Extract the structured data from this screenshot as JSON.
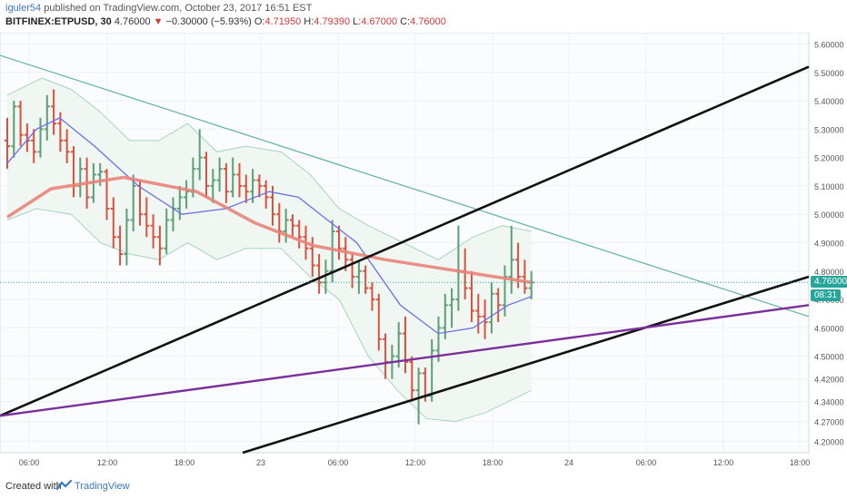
{
  "header": {
    "author": "iguler54",
    "published_text": "published on TradingView.com, October 23, 2017 16:51 EST",
    "symbol": "BITFINEX:ETPUSD, 30",
    "last": "4.76000",
    "change_arrow": "▼",
    "change": "−0.30000 (−5.93%)",
    "o_label": "O:",
    "o_value": "4.71950",
    "h_label": "H:",
    "h_value": "4.79390",
    "l_label": "L:",
    "l_value": "4.67000",
    "c_label": "C:",
    "c_value": "4.76000"
  },
  "price_badge": {
    "value": "4.76000",
    "color": "#26a69a"
  },
  "timer_badge": {
    "value": "08:31",
    "color": "#26a69a"
  },
  "footer": {
    "created_with": "Created with",
    "brand": "TradingView"
  },
  "colors": {
    "up": "#5e9e77",
    "down": "#d9513f",
    "ema": "#e8837a",
    "basis": "#6e6ee8",
    "bands": "#a7d3c0",
    "band_fill": "#eef6f1",
    "trend_green": "#5bb39a",
    "channel": "#111111",
    "purple": "#7b2f9a"
  },
  "chart_data": {
    "type": "ohlc",
    "x_ticks": [
      "06:00",
      "12:00",
      "18:00",
      "23",
      "06:00",
      "12:00",
      "18:00",
      "24",
      "06:00",
      "12:00",
      "18:00"
    ],
    "y_ticks": [
      "5.60000",
      "5.50000",
      "5.40000",
      "5.30000",
      "5.20000",
      "5.10000",
      "5.00000",
      "4.90000",
      "4.80000",
      "4.70000",
      "4.60000",
      "4.50000",
      "4.42000",
      "4.34000",
      "4.27000",
      "4.20000"
    ],
    "y_range": [
      4.16,
      5.64
    ],
    "last_price": 4.76,
    "candles": [
      [
        5.26,
        5.34,
        5.16,
        5.24
      ],
      [
        5.24,
        5.4,
        5.2,
        5.38
      ],
      [
        5.38,
        5.4,
        5.24,
        5.28
      ],
      [
        5.28,
        5.32,
        5.22,
        5.26
      ],
      [
        5.26,
        5.3,
        5.18,
        5.22
      ],
      [
        5.22,
        5.34,
        5.2,
        5.3
      ],
      [
        5.3,
        5.42,
        5.26,
        5.38
      ],
      [
        5.38,
        5.44,
        5.28,
        5.32
      ],
      [
        5.32,
        5.36,
        5.22,
        5.26
      ],
      [
        5.26,
        5.3,
        5.18,
        5.22
      ],
      [
        5.22,
        5.24,
        5.06,
        5.1
      ],
      [
        5.1,
        5.2,
        5.06,
        5.16
      ],
      [
        5.16,
        5.2,
        5.02,
        5.06
      ],
      [
        5.06,
        5.18,
        5.04,
        5.14
      ],
      [
        5.14,
        5.18,
        5.1,
        5.15
      ],
      [
        5.15,
        5.16,
        4.98,
        5.02
      ],
      [
        5.02,
        5.06,
        4.88,
        4.92
      ],
      [
        4.92,
        4.96,
        4.82,
        4.86
      ],
      [
        4.86,
        5.02,
        4.82,
        4.98
      ],
      [
        4.98,
        5.14,
        4.94,
        5.1
      ],
      [
        5.1,
        5.12,
        4.96,
        5.0
      ],
      [
        5.0,
        5.06,
        4.92,
        4.96
      ],
      [
        4.96,
        5.0,
        4.88,
        4.92
      ],
      [
        4.92,
        4.96,
        4.82,
        4.88
      ],
      [
        4.88,
        5.02,
        4.86,
        4.98
      ],
      [
        4.98,
        5.06,
        4.94,
        5.02
      ],
      [
        5.02,
        5.1,
        4.98,
        5.06
      ],
      [
        5.06,
        5.12,
        5.02,
        5.08
      ],
      [
        5.08,
        5.2,
        5.06,
        5.16
      ],
      [
        5.16,
        5.3,
        5.12,
        5.2
      ],
      [
        5.2,
        5.22,
        5.06,
        5.1
      ],
      [
        5.1,
        5.16,
        5.04,
        5.12
      ],
      [
        5.12,
        5.2,
        5.08,
        5.16
      ],
      [
        5.16,
        5.18,
        5.04,
        5.08
      ],
      [
        5.08,
        5.2,
        5.06,
        5.14
      ],
      [
        5.14,
        5.18,
        5.06,
        5.1
      ],
      [
        5.1,
        5.14,
        5.04,
        5.08
      ],
      [
        5.08,
        5.16,
        5.04,
        5.12
      ],
      [
        5.12,
        5.14,
        5.06,
        5.1
      ],
      [
        5.1,
        5.12,
        5.02,
        5.06
      ],
      [
        5.06,
        5.1,
        4.96,
        5.0
      ],
      [
        5.0,
        5.04,
        4.9,
        4.94
      ],
      [
        4.94,
        5.02,
        4.9,
        4.98
      ],
      [
        4.98,
        5.0,
        4.92,
        4.96
      ],
      [
        4.96,
        4.98,
        4.88,
        4.92
      ],
      [
        4.92,
        4.96,
        4.84,
        4.88
      ],
      [
        4.88,
        4.92,
        4.78,
        4.82
      ],
      [
        4.82,
        4.86,
        4.72,
        4.76
      ],
      [
        4.76,
        4.84,
        4.72,
        4.8
      ],
      [
        4.8,
        4.98,
        4.76,
        4.94
      ],
      [
        4.94,
        4.96,
        4.84,
        4.88
      ],
      [
        4.88,
        4.92,
        4.8,
        4.84
      ],
      [
        4.84,
        4.86,
        4.74,
        4.78
      ],
      [
        4.78,
        4.84,
        4.72,
        4.8
      ],
      [
        4.8,
        4.82,
        4.72,
        4.74
      ],
      [
        4.74,
        4.76,
        4.66,
        4.7
      ],
      [
        4.7,
        4.72,
        4.52,
        4.56
      ],
      [
        4.56,
        4.58,
        4.42,
        4.48
      ],
      [
        4.48,
        4.54,
        4.42,
        4.5
      ],
      [
        4.5,
        4.62,
        4.46,
        4.58
      ],
      [
        4.58,
        4.64,
        4.44,
        4.48
      ],
      [
        4.48,
        4.5,
        4.34,
        4.38
      ],
      [
        4.38,
        4.46,
        4.26,
        4.44
      ],
      [
        4.44,
        4.46,
        4.34,
        4.36
      ],
      [
        4.36,
        4.56,
        4.34,
        4.52
      ],
      [
        4.52,
        4.64,
        4.48,
        4.6
      ],
      [
        4.6,
        4.72,
        4.56,
        4.68
      ],
      [
        4.68,
        4.74,
        4.6,
        4.7
      ],
      [
        4.7,
        4.96,
        4.66,
        4.8
      ],
      [
        4.8,
        4.88,
        4.7,
        4.74
      ],
      [
        4.74,
        4.8,
        4.62,
        4.66
      ],
      [
        4.66,
        4.72,
        4.58,
        4.64
      ],
      [
        4.64,
        4.7,
        4.56,
        4.62
      ],
      [
        4.62,
        4.76,
        4.58,
        4.72
      ],
      [
        4.72,
        4.74,
        4.62,
        4.68
      ],
      [
        4.68,
        4.82,
        4.64,
        4.78
      ],
      [
        4.78,
        4.96,
        4.72,
        4.84
      ],
      [
        4.84,
        4.9,
        4.74,
        4.78
      ],
      [
        4.78,
        4.84,
        4.72,
        4.74
      ],
      [
        4.74,
        4.8,
        4.7,
        4.76
      ]
    ],
    "ema_line": [
      [
        0,
        4.99
      ],
      [
        15,
        5.09
      ],
      [
        40,
        5.13
      ],
      [
        65,
        5.08
      ],
      [
        85,
        4.97
      ],
      [
        105,
        4.89
      ],
      [
        130,
        4.84
      ],
      [
        155,
        4.8
      ],
      [
        180,
        4.76
      ]
    ],
    "bb_basis": [
      [
        0,
        5.18
      ],
      [
        10,
        5.3
      ],
      [
        18,
        5.34
      ],
      [
        30,
        5.24
      ],
      [
        45,
        5.1
      ],
      [
        60,
        5.0
      ],
      [
        75,
        5.02
      ],
      [
        90,
        5.08
      ],
      [
        100,
        5.06
      ],
      [
        110,
        4.98
      ],
      [
        120,
        4.9
      ],
      [
        135,
        4.68
      ],
      [
        148,
        4.58
      ],
      [
        160,
        4.6
      ],
      [
        172,
        4.68
      ],
      [
        180,
        4.71
      ]
    ],
    "bb_upper": [
      [
        0,
        5.42
      ],
      [
        12,
        5.48
      ],
      [
        22,
        5.44
      ],
      [
        32,
        5.36
      ],
      [
        42,
        5.26
      ],
      [
        52,
        5.26
      ],
      [
        62,
        5.32
      ],
      [
        72,
        5.22
      ],
      [
        82,
        5.24
      ],
      [
        94,
        5.22
      ],
      [
        104,
        5.14
      ],
      [
        114,
        5.02
      ],
      [
        124,
        4.96
      ],
      [
        136,
        4.9
      ],
      [
        148,
        4.84
      ],
      [
        160,
        4.92
      ],
      [
        170,
        4.96
      ],
      [
        180,
        4.94
      ]
    ],
    "bb_lower": [
      [
        0,
        4.98
      ],
      [
        10,
        5.02
      ],
      [
        22,
        5.0
      ],
      [
        32,
        4.9
      ],
      [
        42,
        4.86
      ],
      [
        52,
        4.84
      ],
      [
        62,
        4.9
      ],
      [
        72,
        4.84
      ],
      [
        82,
        4.88
      ],
      [
        94,
        4.88
      ],
      [
        104,
        4.78
      ],
      [
        114,
        4.7
      ],
      [
        124,
        4.5
      ],
      [
        134,
        4.38
      ],
      [
        144,
        4.28
      ],
      [
        154,
        4.27
      ],
      [
        164,
        4.3
      ],
      [
        172,
        4.34
      ],
      [
        180,
        4.38
      ]
    ],
    "lines": [
      {
        "x1": 0,
        "y1": 5.56,
        "x2": 300,
        "y2": 4.64,
        "style": "trend_green"
      },
      {
        "x1": 0,
        "y1": 4.29,
        "x2": 300,
        "y2": 5.52,
        "style": "channel"
      },
      {
        "x1": 90,
        "y1": 4.16,
        "x2": 300,
        "y2": 4.78,
        "style": "channel"
      },
      {
        "x1": 0,
        "y1": 4.29,
        "x2": 300,
        "y2": 4.68,
        "style": "purple"
      }
    ]
  }
}
